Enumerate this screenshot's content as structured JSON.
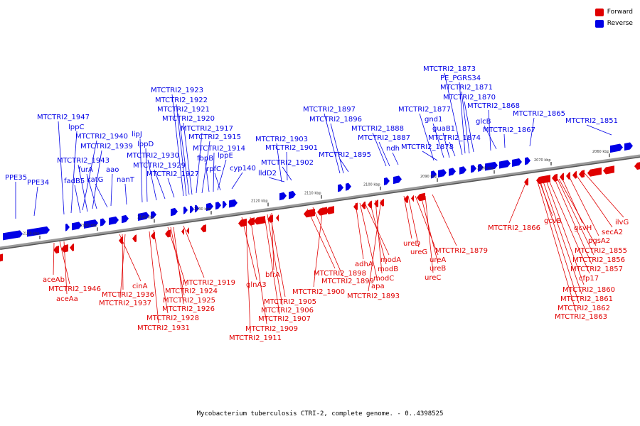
{
  "caption": "Mycobacterium tuberculosis CTRI-2, complete genome. - 0..4398525",
  "colors": {
    "forward": "#e00000",
    "reverse": "#0000e6",
    "backbone": "#9a9a9a"
  },
  "legend": [
    {
      "label": "Forward",
      "color": "#e00000"
    },
    {
      "label": "Reverse",
      "color": "#0000e6"
    }
  ],
  "scale_ticks": [
    "2060 kbp",
    "2070 kbp",
    "2080 kbp",
    "2090 kbp",
    "2100 kbp",
    "2110 kbp",
    "2120 kbp",
    "2130 kbp",
    "2140 kbp",
    "2150 kbp",
    "2160 kbp"
  ],
  "reverse_genes": [
    "PPE35",
    "PPE34",
    "MTCTRI2_1947",
    "lppC",
    "MTCTRI2_1940",
    "MTCTRI2_1939",
    "MTCTRI2_1943",
    "furA",
    "fadB5",
    "katG",
    "aao",
    "nanT",
    "lipJ",
    "lppD",
    "MTCTRI2_1930",
    "MTCTRI2_1929",
    "MTCTRI2_1927",
    "MTCTRI2_1923",
    "MTCTRI2_1922",
    "MTCTRI2_1921",
    "MTCTRI2_1920",
    "MTCTRI2_1917",
    "MTCTRI2_1915",
    "fbpB",
    "MTCTRI2_1914",
    "lppE",
    "rpfC",
    "cyp140",
    "MTCTRI2_1903",
    "MTCTRI2_1901",
    "MTCTRI2_1902",
    "lldD2",
    "MTCTRI2_1897",
    "MTCTRI2_1896",
    "MTCTRI2_1895",
    "MTCTRI2_1888",
    "MTCTRI2_1887",
    "ndh",
    "MTCTRI2_1877",
    "MTCTRI2_1878",
    "gnd1",
    "guaB1",
    "MTCTRI2_1874",
    "MTCTRI2_1873",
    "PE_PGRS34",
    "MTCTRI2_1871",
    "MTCTRI2_1870",
    "MTCTRI2_1868",
    "glcB",
    "MTCTRI2_1867",
    "MTCTRI2_1865",
    "MTCTRI2_1851"
  ],
  "forward_genes": [
    "aceAb",
    "MTCTRI2_1946",
    "aceAa",
    "cinA",
    "MTCTRI2_1936",
    "MTCTRI2_1937",
    "MTCTRI2_1919",
    "MTCTRI2_1924",
    "MTCTRI2_1925",
    "MTCTRI2_1926",
    "MTCTRI2_1928",
    "MTCTRI2_1931",
    "glnA3",
    "bfrA",
    "MTCTRI2_1905",
    "MTCTRI2_1906",
    "MTCTRI2_1907",
    "MTCTRI2_1909",
    "MTCTRI2_1911",
    "MTCTRI2_1898",
    "MTCTRI2_1899",
    "MTCTRI2_1900",
    "adhA",
    "apa",
    "modA",
    "modB",
    "modC",
    "MTCTRI2_1893",
    "ureD",
    "ureG",
    "ureA",
    "ureB",
    "ureC",
    "MTCTRI2_1879",
    "MTCTRI2_1866",
    "gcvB",
    "gcvH",
    "pgsA2",
    "secA2",
    "ilvG",
    "MTCTRI2_1855",
    "MTCTRI2_1856",
    "MTCTRI2_1857",
    "cfp17",
    "MTCTRI2_1860",
    "MTCTRI2_1861",
    "MTCTRI2_1862",
    "MTCTRI2_1863"
  ]
}
